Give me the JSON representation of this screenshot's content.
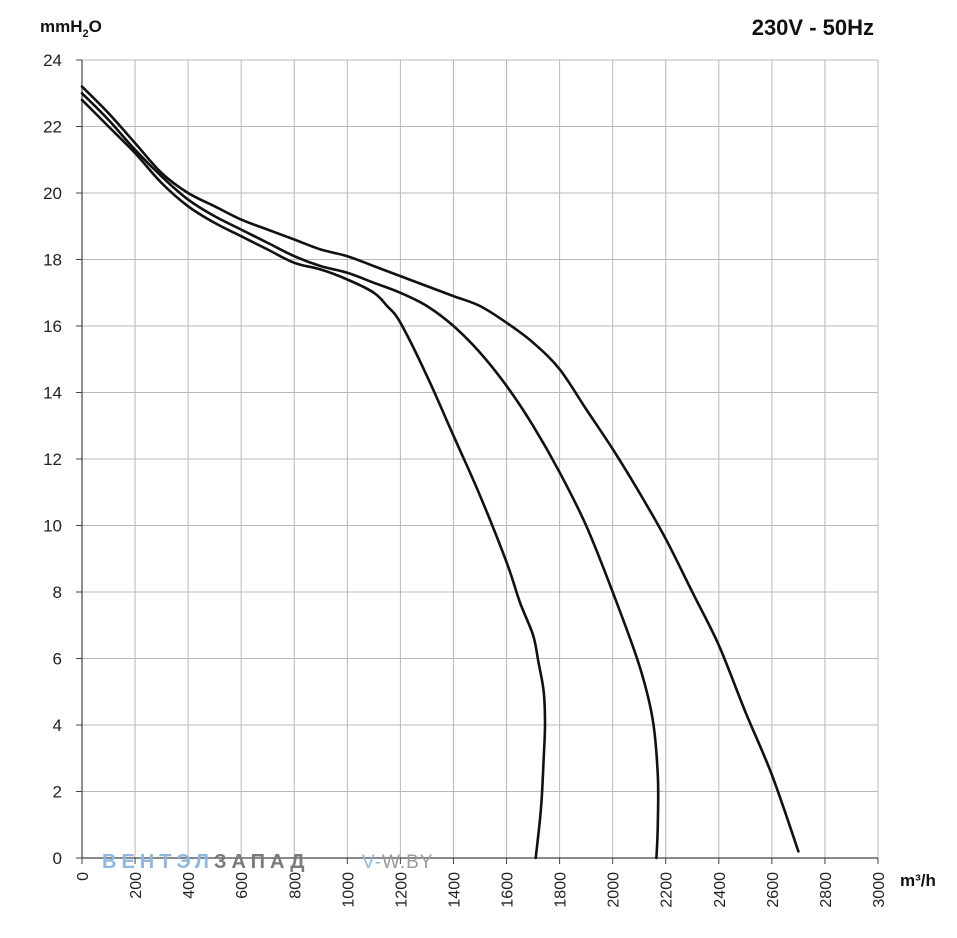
{
  "chart_data": {
    "type": "line",
    "title": "230V - 50Hz",
    "ylabel": "mmH2O",
    "ylabel_main": "mmH",
    "ylabel_sub": "2",
    "ylabel_tail": "O",
    "xunit": "m³/h",
    "xlim": [
      0,
      3000
    ],
    "ylim": [
      0,
      24
    ],
    "x_ticks": [
      0,
      200,
      400,
      600,
      800,
      1000,
      1200,
      1400,
      1600,
      1800,
      2000,
      2200,
      2400,
      2600,
      2800,
      3000
    ],
    "y_ticks": [
      0,
      2,
      4,
      6,
      8,
      10,
      12,
      14,
      16,
      18,
      20,
      22,
      24
    ],
    "grid": true,
    "series": [
      {
        "x": [
          0,
          100,
          200,
          300,
          400,
          500,
          600,
          700,
          800,
          900,
          1000,
          1100,
          1150,
          1200,
          1300,
          1400,
          1500,
          1600,
          1650,
          1700,
          1720,
          1740,
          1745,
          1740,
          1730,
          1710
        ],
        "y": [
          22.8,
          22.0,
          21.2,
          20.3,
          19.6,
          19.1,
          18.7,
          18.3,
          17.9,
          17.7,
          17.4,
          17.0,
          16.6,
          16.1,
          14.5,
          12.7,
          10.9,
          8.9,
          7.7,
          6.7,
          5.9,
          5.0,
          4.0,
          3.0,
          1.5,
          0
        ]
      },
      {
        "x": [
          0,
          100,
          200,
          300,
          400,
          500,
          600,
          700,
          800,
          900,
          1000,
          1100,
          1200,
          1300,
          1400,
          1500,
          1600,
          1700,
          1800,
          1900,
          2000,
          2100,
          2150,
          2170,
          2170,
          2165
        ],
        "y": [
          23.0,
          22.2,
          21.3,
          20.5,
          19.8,
          19.3,
          18.9,
          18.5,
          18.1,
          17.8,
          17.6,
          17.3,
          17.0,
          16.6,
          16.0,
          15.2,
          14.2,
          13.0,
          11.6,
          10.0,
          8.0,
          5.8,
          4.2,
          2.5,
          1.0,
          0
        ]
      },
      {
        "x": [
          0,
          100,
          200,
          300,
          400,
          500,
          600,
          700,
          800,
          900,
          1000,
          1100,
          1200,
          1300,
          1400,
          1500,
          1600,
          1700,
          1800,
          1900,
          2000,
          2100,
          2200,
          2300,
          2400,
          2500,
          2600,
          2700
        ],
        "y": [
          23.2,
          22.4,
          21.5,
          20.6,
          20.0,
          19.6,
          19.2,
          18.9,
          18.6,
          18.3,
          18.1,
          17.8,
          17.5,
          17.2,
          16.9,
          16.6,
          16.1,
          15.5,
          14.7,
          13.5,
          12.3,
          11.0,
          9.6,
          8.0,
          6.4,
          4.4,
          2.5,
          0.2
        ]
      }
    ],
    "colors": {
      "line": "#111111",
      "grid": "#b8b8b8",
      "watermark_blue": "#8fb8de",
      "watermark_gray": "#7a7a7a"
    }
  },
  "watermark": {
    "part1": "ВЕНТЭЛ",
    "part2": "ЗАПАД",
    "url_part1": "V-",
    "url_part2": "W.BY"
  }
}
